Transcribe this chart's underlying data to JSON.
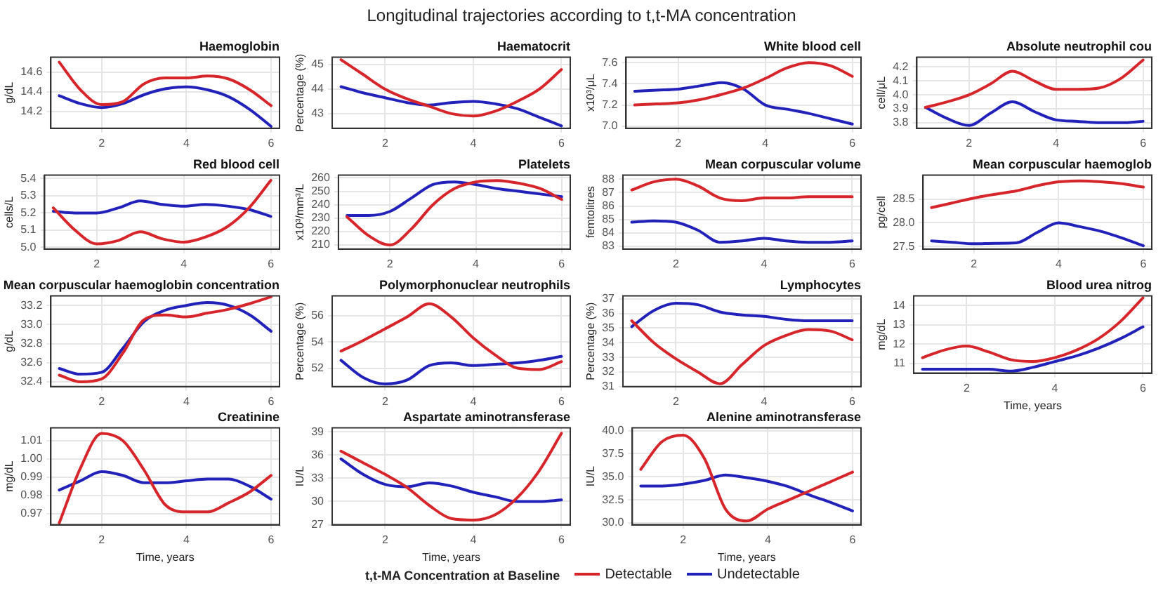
{
  "chart_data": [
    {
      "type": "line",
      "title": "Haemoglobin",
      "ylabel": "g/dL",
      "annotations": [
        "Longitudinal trajectories according to t,t-MA concentration"
      ],
      "xlim": [
        0.8,
        6.2
      ],
      "xticks": [
        2,
        4,
        6
      ],
      "ylim": [
        14.03,
        14.75
      ],
      "yticks": [
        14.2,
        14.4,
        14.6
      ],
      "grid": true,
      "marker": "none",
      "line_style": "solid",
      "x": [
        1,
        1.5,
        2,
        2.5,
        3,
        3.5,
        4,
        4.5,
        5,
        5.5,
        6
      ],
      "series": [
        {
          "color": "#d7262b",
          "values": [
            14.7,
            14.42,
            14.27,
            14.3,
            14.48,
            14.54,
            14.54,
            14.56,
            14.53,
            14.42,
            14.26
          ]
        },
        {
          "color": "#2222bb",
          "values": [
            14.36,
            14.28,
            14.24,
            14.28,
            14.37,
            14.43,
            14.45,
            14.42,
            14.35,
            14.22,
            14.05
          ]
        }
      ]
    },
    {
      "type": "line",
      "title": "Haematocrit",
      "ylabel": "Percentage (%)",
      "xlim": [
        0.8,
        6.2
      ],
      "xticks": [
        2,
        4,
        6
      ],
      "ylim": [
        42.4,
        45.3
      ],
      "yticks": [
        43,
        44,
        45
      ],
      "grid": true,
      "marker": "none",
      "line_style": "solid",
      "x": [
        1,
        1.5,
        2,
        2.5,
        3,
        3.5,
        4,
        4.5,
        5,
        5.5,
        6
      ],
      "series": [
        {
          "color": "#d7262b",
          "values": [
            45.2,
            44.6,
            44.0,
            43.6,
            43.3,
            43.0,
            42.9,
            43.1,
            43.5,
            44.0,
            44.8
          ]
        },
        {
          "color": "#2222bb",
          "values": [
            44.1,
            43.85,
            43.65,
            43.45,
            43.35,
            43.45,
            43.5,
            43.4,
            43.2,
            42.85,
            42.5
          ]
        }
      ]
    },
    {
      "type": "line",
      "title": "White blood cell",
      "ylabel": "x10³/μL",
      "xlim": [
        0.8,
        6.2
      ],
      "xticks": [
        2,
        4,
        6
      ],
      "ylim": [
        6.98,
        7.65
      ],
      "yticks": [
        {
          "value": 7.0,
          "label": "7.0"
        },
        {
          "value": 7.2,
          "label": "7.2"
        },
        {
          "value": 7.4,
          "label": "7.4"
        },
        {
          "value": 7.6,
          "label": "7.6"
        }
      ],
      "grid": true,
      "marker": "none",
      "line_style": "solid",
      "x": [
        1,
        1.5,
        2,
        2.5,
        3,
        3.5,
        4,
        4.5,
        5,
        5.5,
        6
      ],
      "series": [
        {
          "color": "#d7262b",
          "values": [
            7.2,
            7.21,
            7.22,
            7.25,
            7.3,
            7.36,
            7.45,
            7.55,
            7.6,
            7.57,
            7.47
          ]
        },
        {
          "color": "#2222bb",
          "values": [
            7.33,
            7.34,
            7.35,
            7.38,
            7.41,
            7.35,
            7.2,
            7.16,
            7.12,
            7.07,
            7.02
          ]
        }
      ]
    },
    {
      "type": "line",
      "title": "Absolute neutrophil cou",
      "ylabel": "cell/μL",
      "xlim": [
        0.8,
        6.2
      ],
      "xticks": [
        2,
        4,
        6
      ],
      "ylim": [
        3.76,
        4.27
      ],
      "yticks": [
        3.8,
        3.9,
        {
          "value": 4.0,
          "label": "4.0"
        },
        4.1,
        4.2
      ],
      "grid": true,
      "marker": "none",
      "line_style": "solid",
      "x": [
        1,
        1.5,
        2,
        2.5,
        3,
        3.5,
        4,
        4.5,
        5,
        5.5,
        6
      ],
      "series": [
        {
          "color": "#d7262b",
          "values": [
            3.91,
            3.95,
            4.0,
            4.08,
            4.17,
            4.1,
            4.04,
            4.04,
            4.05,
            4.12,
            4.25
          ]
        },
        {
          "color": "#2222bb",
          "values": [
            3.91,
            3.83,
            3.78,
            3.87,
            3.95,
            3.88,
            3.82,
            3.81,
            3.8,
            3.8,
            3.81
          ]
        }
      ]
    },
    {
      "type": "line",
      "title": "Red blood cell",
      "ylabel": "cells/L",
      "xlim": [
        0.8,
        6.2
      ],
      "xticks": [
        2,
        4,
        6
      ],
      "ylim": [
        4.99,
        5.42
      ],
      "yticks": [
        {
          "value": 5.0,
          "label": "5.0"
        },
        5.1,
        5.2,
        5.3,
        5.4
      ],
      "grid": true,
      "marker": "none",
      "line_style": "solid",
      "x": [
        1,
        1.5,
        2,
        2.5,
        3,
        3.5,
        4,
        4.5,
        5,
        5.5,
        6
      ],
      "series": [
        {
          "color": "#d7262b",
          "values": [
            5.23,
            5.1,
            5.02,
            5.04,
            5.09,
            5.05,
            5.03,
            5.06,
            5.12,
            5.23,
            5.39
          ]
        },
        {
          "color": "#2222bb",
          "values": [
            5.21,
            5.2,
            5.2,
            5.23,
            5.27,
            5.25,
            5.24,
            5.25,
            5.24,
            5.22,
            5.18
          ]
        }
      ]
    },
    {
      "type": "line",
      "title": "Platelets",
      "ylabel": "x10³/mm³/L",
      "xlim": [
        0.8,
        6.2
      ],
      "xticks": [
        2,
        4,
        6
      ],
      "ylim": [
        207,
        262
      ],
      "yticks": [
        210,
        220,
        230,
        240,
        250,
        260
      ],
      "grid": true,
      "marker": "none",
      "line_style": "solid",
      "x": [
        1,
        1.5,
        2,
        2.5,
        3,
        3.5,
        4,
        4.5,
        5,
        5.5,
        6
      ],
      "series": [
        {
          "color": "#d7262b",
          "values": [
            231,
            217,
            210,
            222,
            240,
            252,
            257,
            258,
            256,
            252,
            244
          ]
        },
        {
          "color": "#2222bb",
          "values": [
            232,
            232,
            235,
            245,
            255,
            257,
            255,
            252,
            250,
            248,
            246
          ]
        }
      ]
    },
    {
      "type": "line",
      "title": "Mean corpuscular volume",
      "ylabel": "femtolitres",
      "xlim": [
        0.8,
        6.2
      ],
      "xticks": [
        2,
        4,
        6
      ],
      "ylim": [
        82.8,
        88.3
      ],
      "yticks": [
        83,
        84,
        85,
        86,
        87,
        88
      ],
      "grid": true,
      "marker": "none",
      "line_style": "solid",
      "x": [
        1,
        1.5,
        2,
        2.5,
        3,
        3.5,
        4,
        4.5,
        5,
        5.5,
        6
      ],
      "series": [
        {
          "color": "#d7262b",
          "values": [
            87.2,
            87.8,
            88.0,
            87.5,
            86.6,
            86.4,
            86.6,
            86.6,
            86.7,
            86.7,
            86.7
          ]
        },
        {
          "color": "#2222bb",
          "values": [
            84.8,
            84.9,
            84.8,
            84.2,
            83.3,
            83.4,
            83.6,
            83.4,
            83.3,
            83.3,
            83.4
          ]
        }
      ]
    },
    {
      "type": "line",
      "title": "Mean corpuscular haemoglob",
      "ylabel": "pg/cell",
      "xlim": [
        0.8,
        6.2
      ],
      "xticks": [
        2,
        4,
        6
      ],
      "ylim": [
        27.45,
        29.0
      ],
      "yticks": [
        27.5,
        {
          "value": 28.0,
          "label": "28.0"
        },
        28.5
      ],
      "grid": true,
      "marker": "none",
      "line_style": "solid",
      "x": [
        1,
        1.5,
        2,
        2.5,
        3,
        3.5,
        4,
        4.5,
        5,
        5.5,
        6
      ],
      "series": [
        {
          "color": "#d7262b",
          "values": [
            28.32,
            28.42,
            28.52,
            28.6,
            28.67,
            28.78,
            28.86,
            28.88,
            28.86,
            28.82,
            28.75
          ]
        },
        {
          "color": "#2222bb",
          "values": [
            27.62,
            27.59,
            27.56,
            27.57,
            27.58,
            27.8,
            28.0,
            27.92,
            27.82,
            27.68,
            27.52
          ]
        }
      ]
    },
    {
      "type": "line",
      "title": "Mean corpuscular haemoglobin concentration",
      "ylabel": "g/dL",
      "xlim": [
        0.8,
        6.2
      ],
      "xticks": [
        2,
        4,
        6
      ],
      "ylim": [
        32.35,
        33.3
      ],
      "yticks": [
        32.4,
        32.6,
        32.8,
        {
          "value": 33.0,
          "label": "33.0"
        },
        33.2
      ],
      "grid": true,
      "marker": "none",
      "line_style": "solid",
      "x": [
        1,
        1.5,
        2,
        2.5,
        3,
        3.5,
        4,
        4.5,
        5,
        5.5,
        6
      ],
      "series": [
        {
          "color": "#d7262b",
          "values": [
            32.47,
            32.4,
            32.43,
            32.7,
            33.05,
            33.1,
            33.08,
            33.12,
            33.16,
            33.22,
            33.29
          ]
        },
        {
          "color": "#2222bb",
          "values": [
            32.54,
            32.48,
            32.5,
            32.75,
            33.03,
            33.15,
            33.2,
            33.23,
            33.2,
            33.1,
            32.93
          ]
        }
      ]
    },
    {
      "type": "line",
      "title": "Polymorphonuclear neutrophils",
      "ylabel": "Percentage (%)",
      "xlim": [
        0.8,
        6.2
      ],
      "xticks": [
        2,
        4,
        6
      ],
      "ylim": [
        50.6,
        57.5
      ],
      "yticks": [
        52,
        54,
        56
      ],
      "grid": true,
      "marker": "none",
      "line_style": "solid",
      "x": [
        1,
        1.5,
        2,
        2.5,
        3,
        3.5,
        4,
        4.5,
        5,
        5.5,
        6
      ],
      "series": [
        {
          "color": "#d7262b",
          "values": [
            53.3,
            54.1,
            55.0,
            55.9,
            56.9,
            55.9,
            54.3,
            53.0,
            52.0,
            51.9,
            52.5
          ]
        },
        {
          "color": "#2222bb",
          "values": [
            52.6,
            51.3,
            50.8,
            51.1,
            52.2,
            52.4,
            52.2,
            52.3,
            52.4,
            52.6,
            52.9
          ]
        }
      ]
    },
    {
      "type": "line",
      "title": "Lymphocytes",
      "ylabel": "Percentage (%)",
      "xlim": [
        0.8,
        6.2
      ],
      "xticks": [
        2,
        4,
        6
      ],
      "ylim": [
        31,
        37.2
      ],
      "yticks": [
        31,
        32,
        33,
        34,
        35,
        36,
        37
      ],
      "grid": true,
      "marker": "none",
      "line_style": "solid",
      "x": [
        1,
        1.5,
        2,
        2.5,
        3,
        3.5,
        4,
        4.5,
        5,
        5.5,
        6
      ],
      "series": [
        {
          "color": "#d7262b",
          "values": [
            35.5,
            34.0,
            32.9,
            32.0,
            31.2,
            32.5,
            33.8,
            34.5,
            34.9,
            34.8,
            34.2
          ]
        },
        {
          "color": "#2222bb",
          "values": [
            35.1,
            36.2,
            36.7,
            36.6,
            36.1,
            35.9,
            35.8,
            35.6,
            35.5,
            35.5,
            35.5
          ]
        }
      ]
    },
    {
      "type": "line",
      "title": "Blood urea nitrog",
      "ylabel": "mg/dL",
      "xlabel": "Time, years",
      "xlim": [
        0.8,
        6.2
      ],
      "xticks": [
        2,
        4,
        6
      ],
      "ylim": [
        10.5,
        14.5
      ],
      "yticks": [
        11,
        12,
        13,
        14
      ],
      "grid": true,
      "marker": "none",
      "line_style": "solid",
      "x": [
        1,
        1.5,
        2,
        2.5,
        3,
        3.5,
        4,
        4.5,
        5,
        5.5,
        6
      ],
      "series": [
        {
          "color": "#d7262b",
          "values": [
            11.3,
            11.7,
            11.9,
            11.6,
            11.2,
            11.1,
            11.3,
            11.7,
            12.3,
            13.2,
            14.4
          ]
        },
        {
          "color": "#2222bb",
          "values": [
            10.7,
            10.7,
            10.7,
            10.7,
            10.6,
            10.8,
            11.1,
            11.4,
            11.8,
            12.3,
            12.9
          ]
        }
      ]
    },
    {
      "type": "line",
      "title": "Creatinine",
      "ylabel": "mg/dL",
      "xlabel": "Time, years",
      "xlim": [
        0.8,
        6.2
      ],
      "xticks": [
        2,
        4,
        6
      ],
      "ylim": [
        0.964,
        1.017
      ],
      "yticks": [
        0.97,
        0.98,
        0.99,
        {
          "value": 1.0,
          "label": "1.00"
        },
        1.01
      ],
      "grid": true,
      "marker": "none",
      "line_style": "solid",
      "x": [
        1,
        1.5,
        2,
        2.5,
        3,
        3.5,
        4,
        4.5,
        5,
        5.5,
        6
      ],
      "series": [
        {
          "color": "#d7262b",
          "values": [
            0.965,
            0.995,
            1.014,
            1.01,
            0.994,
            0.975,
            0.971,
            0.971,
            0.976,
            0.982,
            0.991
          ]
        },
        {
          "color": "#2222bb",
          "values": [
            0.983,
            0.988,
            0.993,
            0.991,
            0.987,
            0.987,
            0.988,
            0.989,
            0.989,
            0.985,
            0.978
          ]
        }
      ]
    },
    {
      "type": "line",
      "title": "Aspartate aminotransferase",
      "ylabel": "IU/L",
      "xlabel": "Time, years",
      "legend": "bottom",
      "legend_title": "t,t-MA Concentration at Baseline",
      "xlim": [
        0.8,
        6.2
      ],
      "xticks": [
        2,
        4,
        6
      ],
      "ylim": [
        27,
        39.5
      ],
      "yticks": [
        27,
        30,
        33,
        36,
        39
      ],
      "grid": true,
      "marker": "none",
      "line_style": "solid",
      "x": [
        1,
        1.5,
        2,
        2.5,
        3,
        3.5,
        4,
        4.5,
        5,
        5.5,
        6
      ],
      "series": [
        {
          "name": "Detectable",
          "color": "#d7262b",
          "values": [
            36.5,
            35.0,
            33.5,
            31.8,
            29.5,
            27.8,
            27.6,
            28.3,
            30.5,
            34.0,
            38.8
          ]
        },
        {
          "name": "Undetectable",
          "color": "#2222bb",
          "values": [
            35.5,
            33.5,
            32.2,
            31.9,
            32.4,
            32.0,
            31.2,
            30.6,
            30.0,
            30.0,
            30.2
          ]
        }
      ]
    },
    {
      "type": "line",
      "title": "Alenine aminotransferase",
      "ylabel": "IU/L",
      "xlabel": "Time, years",
      "xlim": [
        0.8,
        6.2
      ],
      "xticks": [
        2,
        4,
        6
      ],
      "ylim": [
        29.8,
        40.3
      ],
      "yticks": [
        {
          "value": 30,
          "label": "30.0"
        },
        {
          "value": 32.5,
          "label": "32.5"
        },
        {
          "value": 35,
          "label": "35.0"
        },
        {
          "value": 37.5,
          "label": "37.5"
        },
        {
          "value": 40,
          "label": "40.0"
        }
      ],
      "grid": true,
      "marker": "none",
      "line_style": "solid",
      "x": [
        1,
        1.5,
        2,
        2.5,
        3,
        3.5,
        4,
        4.5,
        5,
        5.5,
        6
      ],
      "series": [
        {
          "color": "#d7262b",
          "values": [
            35.8,
            38.8,
            39.5,
            37.0,
            31.5,
            30.2,
            31.5,
            32.5,
            33.5,
            34.5,
            35.5
          ]
        },
        {
          "color": "#2222bb",
          "values": [
            34.0,
            34.0,
            34.2,
            34.6,
            35.2,
            34.9,
            34.5,
            33.9,
            33.0,
            32.2,
            31.3
          ]
        }
      ]
    }
  ]
}
